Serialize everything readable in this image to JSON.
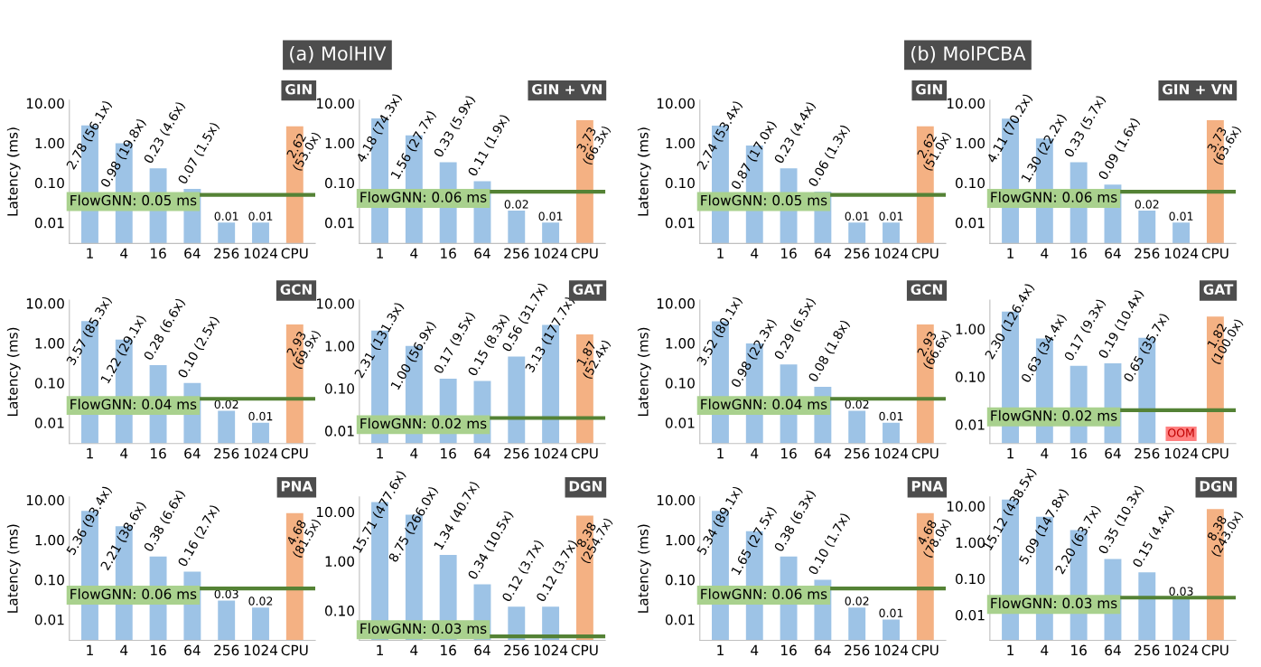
{
  "chart_data": [
    {
      "type": "bar",
      "title": "GIN",
      "ylabel": "Latency (ms)",
      "annotations": [
        "(a) MolHIV"
      ],
      "categories": [
        "1",
        "4",
        "16",
        "64",
        "256",
        "1024",
        "CPU"
      ],
      "values": [
        2.78,
        0.98,
        0.23,
        0.07,
        0.01,
        0.01,
        2.62
      ],
      "colors": [
        "#9dc3e6",
        "#9dc3e6",
        "#9dc3e6",
        "#9dc3e6",
        "#9dc3e6",
        "#9dc3e6",
        "#f4b183"
      ],
      "value_labels": [
        "2.78 (56.1x)",
        "0.98 (19.8x)",
        "0.23 (4.6x)",
        "0.07 (1.5x)",
        "0.01",
        "0.01",
        "2.62 (53.0x)"
      ],
      "log": true,
      "ylim": [
        0.003,
        12
      ],
      "yticks": [
        {
          "value": 0.01,
          "label": "0.01"
        },
        {
          "value": 0.1,
          "label": "0.10"
        },
        {
          "value": 1,
          "label": "1.00"
        },
        {
          "value": 10,
          "label": "10.00"
        }
      ],
      "ref_lines": [
        {
          "axis": "y",
          "value": 0.05,
          "label": "FlowGNN: 0.05 ms",
          "color": "#548235"
        }
      ]
    },
    {
      "type": "bar",
      "title": "GIN + VN",
      "categories": [
        "1",
        "4",
        "16",
        "64",
        "256",
        "1024",
        "CPU"
      ],
      "values": [
        4.18,
        1.56,
        0.33,
        0.11,
        0.02,
        0.01,
        3.73
      ],
      "colors": [
        "#9dc3e6",
        "#9dc3e6",
        "#9dc3e6",
        "#9dc3e6",
        "#9dc3e6",
        "#9dc3e6",
        "#f4b183"
      ],
      "value_labels": [
        "4.18 (74.3x)",
        "1.56 (27.7x)",
        "0.33 (5.9x)",
        "0.11 (1.9x)",
        "0.02",
        "0.01",
        "3.73 (66.3x)"
      ],
      "log": true,
      "ylim": [
        0.003,
        12
      ],
      "yticks": [
        {
          "value": 0.01,
          "label": "0.01"
        },
        {
          "value": 0.1,
          "label": "0.10"
        },
        {
          "value": 1,
          "label": "1.00"
        },
        {
          "value": 10,
          "label": "10.00"
        }
      ],
      "ref_lines": [
        {
          "axis": "y",
          "value": 0.06,
          "label": "FlowGNN: 0.06 ms",
          "color": "#548235"
        }
      ]
    },
    {
      "type": "bar",
      "title": "GIN",
      "ylabel": "Latency (ms)",
      "annotations": [
        "(b) MolPCBA"
      ],
      "categories": [
        "1",
        "4",
        "16",
        "64",
        "256",
        "1024",
        "CPU"
      ],
      "values": [
        2.74,
        0.87,
        0.23,
        0.06,
        0.01,
        0.01,
        2.62
      ],
      "colors": [
        "#9dc3e6",
        "#9dc3e6",
        "#9dc3e6",
        "#9dc3e6",
        "#9dc3e6",
        "#9dc3e6",
        "#f4b183"
      ],
      "value_labels": [
        "2.74 (53.4x)",
        "0.87 (17.0x)",
        "0.23 (4.4x)",
        "0.06 (1.3x)",
        "0.01",
        "0.01",
        "2.62 (51.0x)"
      ],
      "log": true,
      "ylim": [
        0.003,
        12
      ],
      "yticks": [
        {
          "value": 0.01,
          "label": "0.01"
        },
        {
          "value": 0.1,
          "label": "0.10"
        },
        {
          "value": 1,
          "label": "1.00"
        },
        {
          "value": 10,
          "label": "10.00"
        }
      ],
      "ref_lines": [
        {
          "axis": "y",
          "value": 0.05,
          "label": "FlowGNN: 0.05 ms",
          "color": "#548235"
        }
      ]
    },
    {
      "type": "bar",
      "title": "GIN + VN",
      "categories": [
        "1",
        "4",
        "16",
        "64",
        "256",
        "1024",
        "CPU"
      ],
      "values": [
        4.11,
        1.3,
        0.33,
        0.09,
        0.02,
        0.01,
        3.73
      ],
      "colors": [
        "#9dc3e6",
        "#9dc3e6",
        "#9dc3e6",
        "#9dc3e6",
        "#9dc3e6",
        "#9dc3e6",
        "#f4b183"
      ],
      "value_labels": [
        "4.11 (70.2x)",
        "1.30 (22.2x)",
        "0.33 (5.7x)",
        "0.09 (1.6x)",
        "0.02",
        "0.01",
        "3.73 (63.6x)"
      ],
      "log": true,
      "ylim": [
        0.003,
        12
      ],
      "yticks": [
        {
          "value": 0.01,
          "label": "0.01"
        },
        {
          "value": 0.1,
          "label": "0.10"
        },
        {
          "value": 1,
          "label": "1.00"
        },
        {
          "value": 10,
          "label": "10.00"
        }
      ],
      "ref_lines": [
        {
          "axis": "y",
          "value": 0.06,
          "label": "FlowGNN: 0.06 ms",
          "color": "#548235"
        }
      ]
    },
    {
      "type": "bar",
      "title": "GCN",
      "ylabel": "Latency (ms)",
      "categories": [
        "1",
        "4",
        "16",
        "64",
        "256",
        "1024",
        "CPU"
      ],
      "values": [
        3.57,
        1.22,
        0.28,
        0.1,
        0.02,
        0.01,
        2.93
      ],
      "colors": [
        "#9dc3e6",
        "#9dc3e6",
        "#9dc3e6",
        "#9dc3e6",
        "#9dc3e6",
        "#9dc3e6",
        "#f4b183"
      ],
      "value_labels": [
        "3.57 (85.3x)",
        "1.22 (29.1x)",
        "0.28 (6.6x)",
        "0.10 (2.5x)",
        "0.02",
        "0.01",
        "2.93 (69.9x)"
      ],
      "log": true,
      "ylim": [
        0.003,
        12
      ],
      "yticks": [
        {
          "value": 0.01,
          "label": "0.01"
        },
        {
          "value": 0.1,
          "label": "0.10"
        },
        {
          "value": 1,
          "label": "1.00"
        },
        {
          "value": 10,
          "label": "10.00"
        }
      ],
      "ref_lines": [
        {
          "axis": "y",
          "value": 0.04,
          "label": "FlowGNN: 0.04 ms",
          "color": "#548235"
        }
      ]
    },
    {
      "type": "bar",
      "title": "GAT",
      "categories": [
        "1",
        "4",
        "16",
        "64",
        "256",
        "1024",
        "CPU"
      ],
      "values": [
        2.31,
        1.0,
        0.17,
        0.15,
        0.56,
        3.13,
        1.87
      ],
      "colors": [
        "#9dc3e6",
        "#9dc3e6",
        "#9dc3e6",
        "#9dc3e6",
        "#9dc3e6",
        "#9dc3e6",
        "#f4b183"
      ],
      "value_labels": [
        "2.31 (131.3x)",
        "1.00 (56.9x)",
        "0.17 (9.5x)",
        "0.15 (8.3x)",
        "0.56 (31.7x)",
        "3.13 (177.7x)",
        "1.87 (52.4x)"
      ],
      "log": true,
      "ylim": [
        0.005,
        12
      ],
      "yticks": [
        {
          "value": 0.01,
          "label": "0.01"
        },
        {
          "value": 0.1,
          "label": "0.10"
        },
        {
          "value": 1,
          "label": "1.00"
        },
        {
          "value": 10,
          "label": "10.00"
        }
      ],
      "ref_lines": [
        {
          "axis": "y",
          "value": 0.02,
          "label": "FlowGNN: 0.02 ms",
          "color": "#548235"
        }
      ]
    },
    {
      "type": "bar",
      "title": "GCN",
      "ylabel": "Latency (ms)",
      "categories": [
        "1",
        "4",
        "16",
        "64",
        "256",
        "1024",
        "CPU"
      ],
      "values": [
        3.52,
        0.98,
        0.29,
        0.08,
        0.02,
        0.01,
        2.93
      ],
      "colors": [
        "#9dc3e6",
        "#9dc3e6",
        "#9dc3e6",
        "#9dc3e6",
        "#9dc3e6",
        "#9dc3e6",
        "#f4b183"
      ],
      "value_labels": [
        "3.52 (80.1x)",
        "0.98 (22.3x)",
        "0.29 (6.5x)",
        "0.08 (1.8x)",
        "0.02",
        "0.01",
        "2.93 (66.6x)"
      ],
      "log": true,
      "ylim": [
        0.003,
        12
      ],
      "yticks": [
        {
          "value": 0.01,
          "label": "0.01"
        },
        {
          "value": 0.1,
          "label": "0.10"
        },
        {
          "value": 1,
          "label": "1.00"
        },
        {
          "value": 10,
          "label": "10.00"
        }
      ],
      "ref_lines": [
        {
          "axis": "y",
          "value": 0.04,
          "label": "FlowGNN: 0.04 ms",
          "color": "#548235"
        }
      ]
    },
    {
      "type": "bar",
      "title": "GAT",
      "categories": [
        "1",
        "4",
        "16",
        "64",
        "256",
        "1024",
        "CPU"
      ],
      "values": [
        2.3,
        0.63,
        0.17,
        0.19,
        0.65,
        null,
        1.82
      ],
      "colors": [
        "#9dc3e6",
        "#9dc3e6",
        "#9dc3e6",
        "#9dc3e6",
        "#9dc3e6",
        "#9dc3e6",
        "#f4b183"
      ],
      "value_labels": [
        "2.30 (126.4x)",
        "0.63 (34.4x)",
        "0.17 (9.3x)",
        "0.19 (10.4x)",
        "0.65 (35.7x)",
        "OOM",
        "1.82 (100.0x)"
      ],
      "log": true,
      "ylim": [
        0.004,
        4
      ],
      "yticks": [
        {
          "value": 0.01,
          "label": "0.01"
        },
        {
          "value": 0.1,
          "label": "0.10"
        },
        {
          "value": 1,
          "label": "1.00"
        }
      ],
      "ref_lines": [
        {
          "axis": "y",
          "value": 0.02,
          "label": "FlowGNN: 0.02 ms",
          "color": "#548235"
        }
      ]
    },
    {
      "type": "bar",
      "title": "PNA",
      "ylabel": "Latency (ms)",
      "categories": [
        "1",
        "4",
        "16",
        "64",
        "256",
        "1024",
        "CPU"
      ],
      "values": [
        5.36,
        2.21,
        0.38,
        0.16,
        0.03,
        0.02,
        4.68
      ],
      "colors": [
        "#9dc3e6",
        "#9dc3e6",
        "#9dc3e6",
        "#9dc3e6",
        "#9dc3e6",
        "#9dc3e6",
        "#f4b183"
      ],
      "value_labels": [
        "5.36 (93.4x)",
        "2.21 (38.6x)",
        "0.38 (6.6x)",
        "0.16 (2.7x)",
        "0.03",
        "0.02",
        "4.68 (81.5x)"
      ],
      "log": true,
      "ylim": [
        0.003,
        12
      ],
      "yticks": [
        {
          "value": 0.01,
          "label": "0.01"
        },
        {
          "value": 0.1,
          "label": "0.10"
        },
        {
          "value": 1,
          "label": "1.00"
        },
        {
          "value": 10,
          "label": "10.00"
        }
      ],
      "ref_lines": [
        {
          "axis": "y",
          "value": 0.06,
          "label": "FlowGNN: 0.06 ms",
          "color": "#548235"
        }
      ]
    },
    {
      "type": "bar",
      "title": "DGN",
      "categories": [
        "1",
        "4",
        "16",
        "64",
        "256",
        "1024",
        "CPU"
      ],
      "values": [
        15.71,
        8.75,
        1.34,
        0.34,
        0.12,
        0.12,
        8.38
      ],
      "colors": [
        "#9dc3e6",
        "#9dc3e6",
        "#9dc3e6",
        "#9dc3e6",
        "#9dc3e6",
        "#9dc3e6",
        "#f4b183"
      ],
      "value_labels": [
        "15.71 (477.6x)",
        "8.75 (266.0x)",
        "1.34 (40.7x)",
        "0.34 (10.5x)",
        "0.12 (3.7x)",
        "0.12 (3.7x)",
        "8.38 (254.7x)"
      ],
      "log": true,
      "ylim": [
        0.025,
        20
      ],
      "yticks": [
        {
          "value": 0.1,
          "label": "0.10"
        },
        {
          "value": 1,
          "label": "1.00"
        },
        {
          "value": 10,
          "label": "10.00"
        }
      ],
      "ref_lines": [
        {
          "axis": "y",
          "value": 0.03,
          "label": "FlowGNN: 0.03 ms",
          "color": "#548235"
        }
      ]
    },
    {
      "type": "bar",
      "title": "PNA",
      "ylabel": "Latency (ms)",
      "categories": [
        "1",
        "4",
        "16",
        "64",
        "256",
        "1024",
        "CPU"
      ],
      "values": [
        5.34,
        1.65,
        0.38,
        0.1,
        0.02,
        0.01,
        4.68
      ],
      "colors": [
        "#9dc3e6",
        "#9dc3e6",
        "#9dc3e6",
        "#9dc3e6",
        "#9dc3e6",
        "#9dc3e6",
        "#f4b183"
      ],
      "value_labels": [
        "5.34 (89.1x)",
        "1.65 (27.5x)",
        "0.38 (6.3x)",
        "0.10 (1.7x)",
        "0.02",
        "0.01",
        "4.68 (78.0x)"
      ],
      "log": true,
      "ylim": [
        0.003,
        12
      ],
      "yticks": [
        {
          "value": 0.01,
          "label": "0.01"
        },
        {
          "value": 0.1,
          "label": "0.10"
        },
        {
          "value": 1,
          "label": "1.00"
        },
        {
          "value": 10,
          "label": "10.00"
        }
      ],
      "ref_lines": [
        {
          "axis": "y",
          "value": 0.06,
          "label": "FlowGNN: 0.06 ms",
          "color": "#548235"
        }
      ]
    },
    {
      "type": "bar",
      "title": "DGN",
      "categories": [
        "1",
        "4",
        "16",
        "64",
        "256",
        "1024",
        "CPU"
      ],
      "values": [
        15.12,
        5.09,
        2.2,
        0.35,
        0.15,
        0.03,
        8.38
      ],
      "colors": [
        "#9dc3e6",
        "#9dc3e6",
        "#9dc3e6",
        "#9dc3e6",
        "#9dc3e6",
        "#9dc3e6",
        "#f4b183"
      ],
      "value_labels": [
        "15.12 (438.5x)",
        "5.09 (147.8x)",
        "2.20 (63.7x)",
        "0.35 (10.3x)",
        "0.15 (4.4x)",
        "0.03",
        "8.38 (243.0x)"
      ],
      "log": true,
      "ylim": [
        0.002,
        18
      ],
      "yticks": [
        {
          "value": 0.01,
          "label": "0.01"
        },
        {
          "value": 0.1,
          "label": "0.10"
        },
        {
          "value": 1,
          "label": "1.00"
        },
        {
          "value": 10,
          "label": "10.00"
        }
      ],
      "ref_lines": [
        {
          "axis": "y",
          "value": 0.03,
          "label": "FlowGNN: 0.03 ms",
          "color": "#548235"
        }
      ]
    }
  ]
}
